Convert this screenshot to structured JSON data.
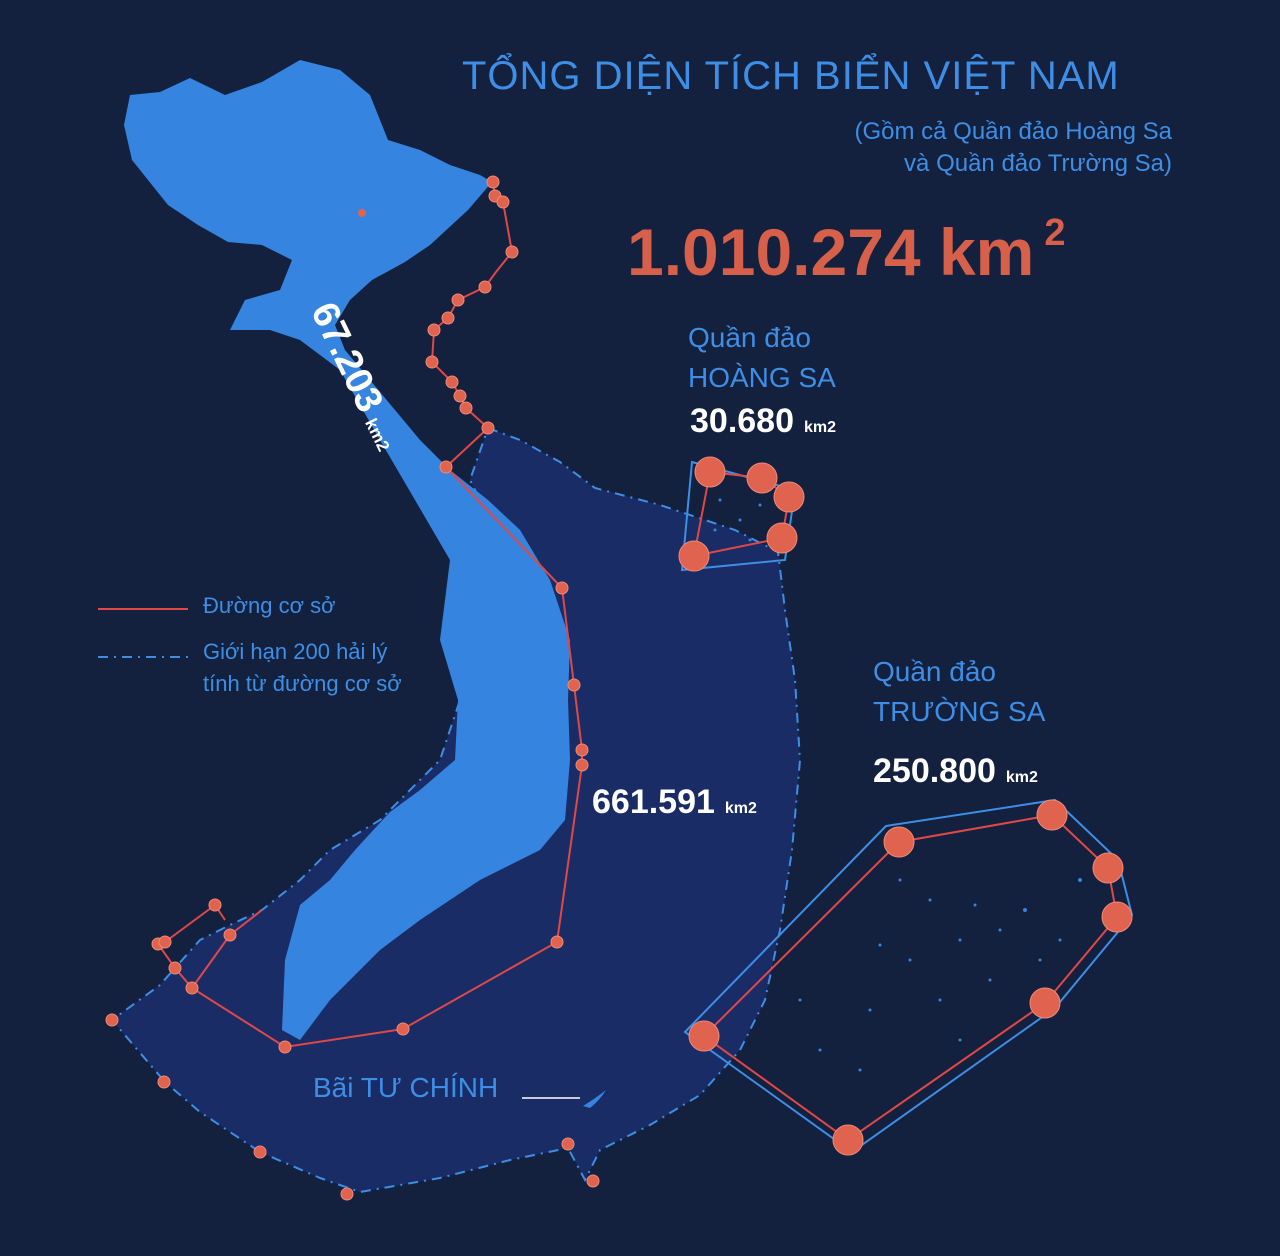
{
  "title": "TỔNG DIỆN TÍCH BIỂN VIỆT NAM",
  "subtitle_line1": "(Gồm cả Quần đảo Hoàng Sa",
  "subtitle_line2": "và Quần đảo Trường Sa)",
  "total_area": {
    "value": "1.010.274 km",
    "superscript": "2"
  },
  "hoang_sa": {
    "label_line1": "Quần đảo",
    "label_line2": "HOÀNG SA",
    "area": "30.680",
    "unit": "km2"
  },
  "truong_sa": {
    "label_line1": "Quần đảo",
    "label_line2": "TRƯỜNG SA",
    "area": "250.800",
    "unit": "km2"
  },
  "gulf_area": {
    "area": "67.203",
    "unit": "km2"
  },
  "sea_area": {
    "area": "661.591",
    "unit": "km2"
  },
  "legend": {
    "baseline": "Đường cơ sở",
    "limit_line1": "Giới hạn 200 hải lý",
    "limit_line2": "tính từ đường cơ sở"
  },
  "bank_label": "Bãi TƯ CHÍNH",
  "colors": {
    "background": "#13213f",
    "land": "#3585e0",
    "sea_zone": "#1a2c66",
    "baseline": "#e04848",
    "point": "#e0634f",
    "limit": "#3e8ee6",
    "title": "#3e8ee6",
    "total": "#d6604a"
  }
}
